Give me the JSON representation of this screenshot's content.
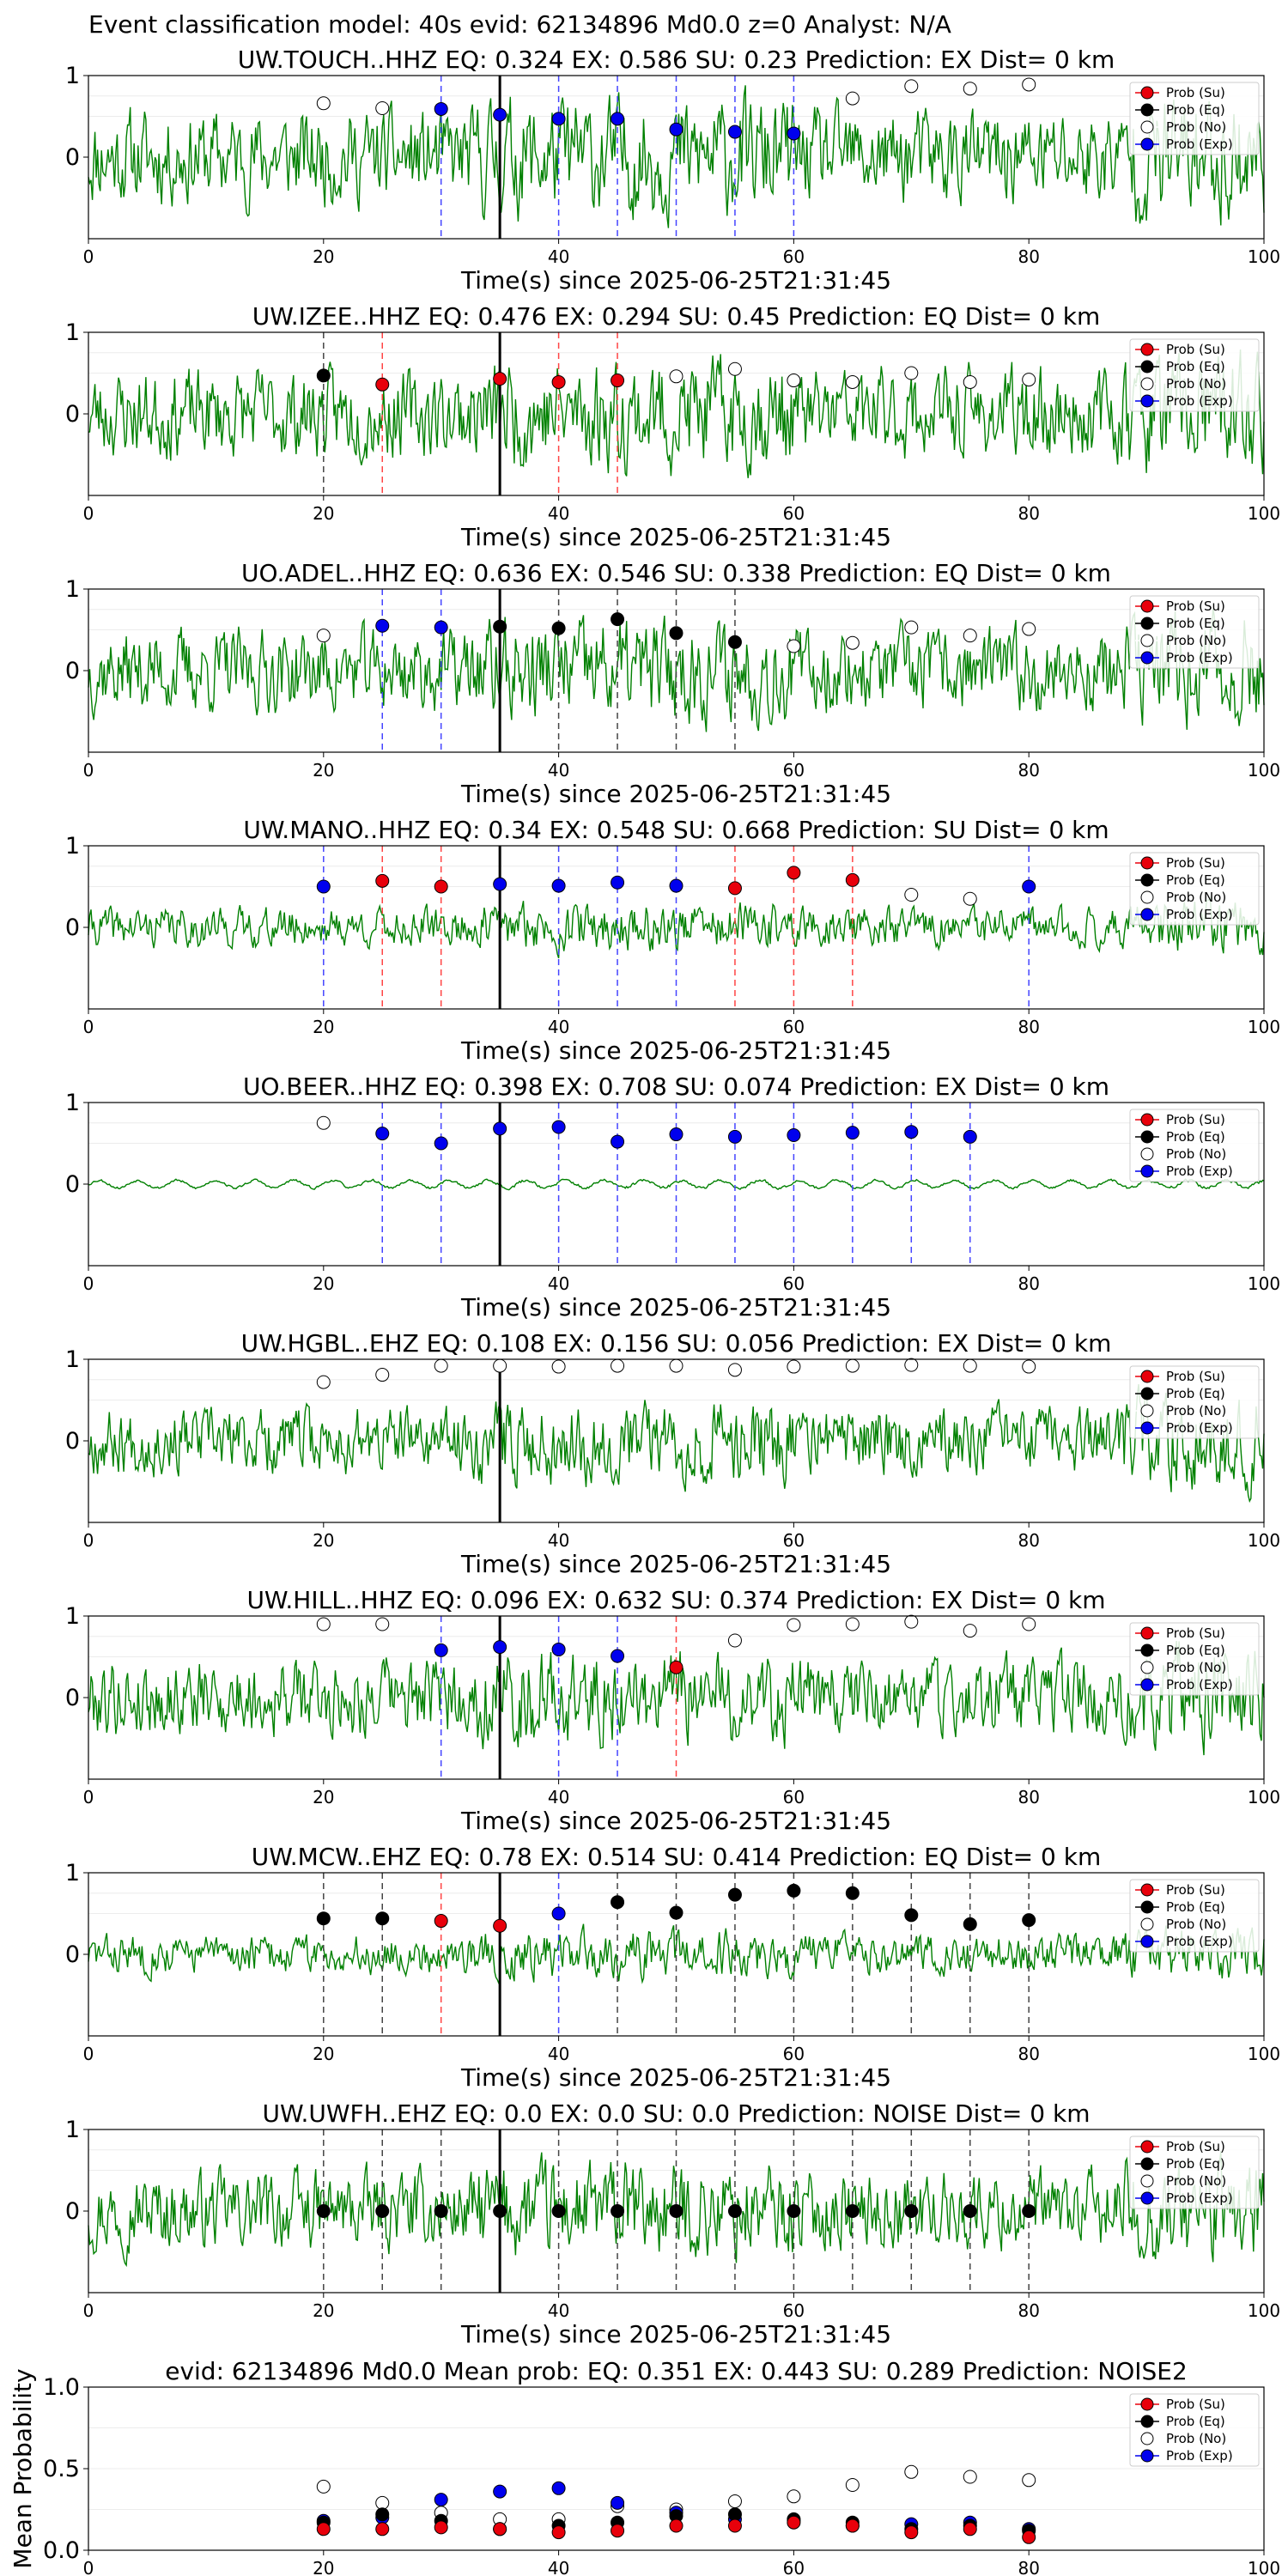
{
  "figure": {
    "suptitle": "Event classification model: 40s evid: 62134896 Md0.0 z=0 Analyst: N/A"
  },
  "legend": {
    "labels": [
      "Prob (Su)",
      "Prob (Eq)",
      "Prob (No)",
      "Prob (Exp)"
    ],
    "colors": [
      "#e8000b",
      "#000000",
      "#ffffff",
      "#0000ee"
    ]
  },
  "colors": {
    "waveform": "#008000",
    "su": "#e8000b",
    "eq": "#000000",
    "no": "#ffffff",
    "exp": "#0000ee",
    "su_line": "#ff4444",
    "eq_line": "#444444",
    "exp_line": "#4444ff"
  },
  "chart_data": [
    {
      "type": "line",
      "station": "UW.TOUCH..HHZ",
      "title": "UW.TOUCH..HHZ   EQ: 0.324  EX: 0.586  SU: 0.23   Prediction: EX    Dist= 0 km",
      "xlabel": "Time(s) since 2025-06-25T21:31:45",
      "xlim": [
        0,
        100
      ],
      "ylim": [
        -1,
        1
      ],
      "xticks": [
        "0",
        "20",
        "40",
        "60",
        "80",
        "100"
      ],
      "yticks": [
        "1",
        "0"
      ],
      "pick_time": 35,
      "amplitude": 0.85,
      "seed": 11,
      "points": [
        {
          "x": 20,
          "p": 0.66,
          "c": "no"
        },
        {
          "x": 25,
          "p": 0.6,
          "c": "no"
        },
        {
          "x": 30,
          "p": 0.59,
          "c": "exp"
        },
        {
          "x": 35,
          "p": 0.52,
          "c": "exp"
        },
        {
          "x": 40,
          "p": 0.47,
          "c": "exp"
        },
        {
          "x": 45,
          "p": 0.47,
          "c": "exp"
        },
        {
          "x": 50,
          "p": 0.34,
          "c": "exp"
        },
        {
          "x": 55,
          "p": 0.31,
          "c": "exp"
        },
        {
          "x": 60,
          "p": 0.29,
          "c": "exp"
        },
        {
          "x": 65,
          "p": 0.72,
          "c": "no"
        },
        {
          "x": 70,
          "p": 0.87,
          "c": "no"
        },
        {
          "x": 75,
          "p": 0.84,
          "c": "no"
        },
        {
          "x": 80,
          "p": 0.89,
          "c": "no"
        }
      ]
    },
    {
      "type": "line",
      "station": "UW.IZEE..HHZ",
      "title": "UW.IZEE..HHZ   EQ: 0.476  EX: 0.294  SU: 0.45   Prediction: EQ    Dist= 0 km",
      "xlabel": "Time(s) since 2025-06-25T21:31:45",
      "xlim": [
        0,
        100
      ],
      "ylim": [
        -1,
        1
      ],
      "xticks": [
        "0",
        "20",
        "40",
        "60",
        "80",
        "100"
      ],
      "yticks": [
        "1",
        "0"
      ],
      "pick_time": 35,
      "amplitude": 0.8,
      "seed": 23,
      "points": [
        {
          "x": 20,
          "p": 0.47,
          "c": "eq"
        },
        {
          "x": 25,
          "p": 0.36,
          "c": "su"
        },
        {
          "x": 35,
          "p": 0.43,
          "c": "su"
        },
        {
          "x": 40,
          "p": 0.39,
          "c": "su"
        },
        {
          "x": 45,
          "p": 0.41,
          "c": "su"
        },
        {
          "x": 50,
          "p": 0.46,
          "c": "no"
        },
        {
          "x": 55,
          "p": 0.55,
          "c": "no"
        },
        {
          "x": 60,
          "p": 0.41,
          "c": "no"
        },
        {
          "x": 65,
          "p": 0.39,
          "c": "no"
        },
        {
          "x": 70,
          "p": 0.5,
          "c": "no"
        },
        {
          "x": 75,
          "p": 0.39,
          "c": "no"
        },
        {
          "x": 80,
          "p": 0.42,
          "c": "no"
        }
      ]
    },
    {
      "type": "line",
      "station": "UO.ADEL..HHZ",
      "title": "UO.ADEL..HHZ   EQ: 0.636  EX: 0.546  SU: 0.338   Prediction: EQ    Dist= 0 km",
      "xlabel": "Time(s) since 2025-06-25T21:31:45",
      "xlim": [
        0,
        100
      ],
      "ylim": [
        -1,
        1
      ],
      "xticks": [
        "0",
        "20",
        "40",
        "60",
        "80",
        "100"
      ],
      "yticks": [
        "1",
        "0"
      ],
      "pick_time": 35,
      "amplitude": 0.75,
      "seed": 37,
      "points": [
        {
          "x": 20,
          "p": 0.43,
          "c": "no"
        },
        {
          "x": 25,
          "p": 0.55,
          "c": "exp"
        },
        {
          "x": 30,
          "p": 0.53,
          "c": "exp"
        },
        {
          "x": 35,
          "p": 0.54,
          "c": "eq"
        },
        {
          "x": 40,
          "p": 0.52,
          "c": "eq"
        },
        {
          "x": 45,
          "p": 0.63,
          "c": "eq"
        },
        {
          "x": 50,
          "p": 0.46,
          "c": "eq"
        },
        {
          "x": 55,
          "p": 0.35,
          "c": "eq"
        },
        {
          "x": 60,
          "p": 0.3,
          "c": "no"
        },
        {
          "x": 65,
          "p": 0.34,
          "c": "no"
        },
        {
          "x": 70,
          "p": 0.53,
          "c": "no"
        },
        {
          "x": 75,
          "p": 0.43,
          "c": "no"
        },
        {
          "x": 80,
          "p": 0.51,
          "c": "no"
        }
      ]
    },
    {
      "type": "line",
      "station": "UW.MANO..HHZ",
      "title": "UW.MANO..HHZ   EQ: 0.34  EX: 0.548  SU: 0.668   Prediction: SU    Dist= 0 km",
      "xlabel": "Time(s) since 2025-06-25T21:31:45",
      "xlim": [
        0,
        100
      ],
      "ylim": [
        -1,
        1
      ],
      "xticks": [
        "0",
        "20",
        "40",
        "60",
        "80",
        "100"
      ],
      "yticks": [
        "1",
        "0"
      ],
      "pick_time": 35,
      "amplitude": 0.35,
      "seed": 41,
      "points": [
        {
          "x": 20,
          "p": 0.5,
          "c": "exp"
        },
        {
          "x": 25,
          "p": 0.57,
          "c": "su"
        },
        {
          "x": 30,
          "p": 0.5,
          "c": "su"
        },
        {
          "x": 35,
          "p": 0.53,
          "c": "exp"
        },
        {
          "x": 40,
          "p": 0.51,
          "c": "exp"
        },
        {
          "x": 45,
          "p": 0.55,
          "c": "exp"
        },
        {
          "x": 50,
          "p": 0.51,
          "c": "exp"
        },
        {
          "x": 55,
          "p": 0.48,
          "c": "su"
        },
        {
          "x": 60,
          "p": 0.67,
          "c": "su"
        },
        {
          "x": 65,
          "p": 0.58,
          "c": "su"
        },
        {
          "x": 70,
          "p": 0.4,
          "c": "no"
        },
        {
          "x": 75,
          "p": 0.35,
          "c": "no"
        },
        {
          "x": 80,
          "p": 0.5,
          "c": "exp"
        }
      ]
    },
    {
      "type": "line",
      "station": "UO.BEER..HHZ",
      "title": "UO.BEER..HHZ   EQ: 0.398  EX: 0.708  SU: 0.074   Prediction: EX    Dist= 0 km",
      "xlabel": "Time(s) since 2025-06-25T21:31:45",
      "xlim": [
        0,
        100
      ],
      "ylim": [
        -1,
        1
      ],
      "xticks": [
        "0",
        "20",
        "40",
        "60",
        "80",
        "100"
      ],
      "yticks": [
        "1",
        "0"
      ],
      "pick_time": 35,
      "amplitude": 0.08,
      "seed": 53,
      "points": [
        {
          "x": 20,
          "p": 0.75,
          "c": "no"
        },
        {
          "x": 25,
          "p": 0.62,
          "c": "exp"
        },
        {
          "x": 30,
          "p": 0.5,
          "c": "exp"
        },
        {
          "x": 35,
          "p": 0.68,
          "c": "exp"
        },
        {
          "x": 40,
          "p": 0.7,
          "c": "exp"
        },
        {
          "x": 45,
          "p": 0.52,
          "c": "exp"
        },
        {
          "x": 50,
          "p": 0.61,
          "c": "exp"
        },
        {
          "x": 55,
          "p": 0.58,
          "c": "exp"
        },
        {
          "x": 60,
          "p": 0.6,
          "c": "exp"
        },
        {
          "x": 65,
          "p": 0.63,
          "c": "exp"
        },
        {
          "x": 70,
          "p": 0.64,
          "c": "exp"
        },
        {
          "x": 75,
          "p": 0.58,
          "c": "exp"
        }
      ]
    },
    {
      "type": "line",
      "station": "UW.HGBL..EHZ",
      "title": "UW.HGBL..EHZ   EQ: 0.108  EX: 0.156  SU: 0.056   Prediction: EX    Dist= 0 km",
      "xlabel": "Time(s) since 2025-06-25T21:31:45",
      "xlim": [
        0,
        100
      ],
      "ylim": [
        -1,
        1
      ],
      "xticks": [
        "0",
        "20",
        "40",
        "60",
        "80",
        "100"
      ],
      "yticks": [
        "1",
        "0"
      ],
      "pick_time": 35,
      "amplitude": 0.6,
      "seed": 67,
      "points": [
        {
          "x": 20,
          "p": 0.72,
          "c": "no"
        },
        {
          "x": 25,
          "p": 0.81,
          "c": "no"
        },
        {
          "x": 30,
          "p": 0.92,
          "c": "no"
        },
        {
          "x": 35,
          "p": 0.92,
          "c": "no"
        },
        {
          "x": 40,
          "p": 0.91,
          "c": "no"
        },
        {
          "x": 45,
          "p": 0.92,
          "c": "no"
        },
        {
          "x": 50,
          "p": 0.92,
          "c": "no"
        },
        {
          "x": 55,
          "p": 0.87,
          "c": "no"
        },
        {
          "x": 60,
          "p": 0.91,
          "c": "no"
        },
        {
          "x": 65,
          "p": 0.92,
          "c": "no"
        },
        {
          "x": 70,
          "p": 0.93,
          "c": "no"
        },
        {
          "x": 75,
          "p": 0.92,
          "c": "no"
        },
        {
          "x": 80,
          "p": 0.91,
          "c": "no"
        }
      ]
    },
    {
      "type": "line",
      "station": "UW.HILL..HHZ",
      "title": "UW.HILL..HHZ   EQ: 0.096  EX: 0.632  SU: 0.374   Prediction: EX    Dist= 0 km",
      "xlabel": "Time(s) since 2025-06-25T21:31:45",
      "xlim": [
        0,
        100
      ],
      "ylim": [
        -1,
        1
      ],
      "xticks": [
        "0",
        "20",
        "40",
        "60",
        "80",
        "100"
      ],
      "yticks": [
        "1",
        "0"
      ],
      "pick_time": 35,
      "amplitude": 0.7,
      "seed": 79,
      "points": [
        {
          "x": 20,
          "p": 0.9,
          "c": "no"
        },
        {
          "x": 25,
          "p": 0.9,
          "c": "no"
        },
        {
          "x": 30,
          "p": 0.58,
          "c": "exp"
        },
        {
          "x": 35,
          "p": 0.62,
          "c": "exp"
        },
        {
          "x": 40,
          "p": 0.59,
          "c": "exp"
        },
        {
          "x": 45,
          "p": 0.51,
          "c": "exp"
        },
        {
          "x": 50,
          "p": 0.37,
          "c": "su"
        },
        {
          "x": 55,
          "p": 0.7,
          "c": "no"
        },
        {
          "x": 60,
          "p": 0.89,
          "c": "no"
        },
        {
          "x": 65,
          "p": 0.9,
          "c": "no"
        },
        {
          "x": 70,
          "p": 0.93,
          "c": "no"
        },
        {
          "x": 75,
          "p": 0.82,
          "c": "no"
        },
        {
          "x": 80,
          "p": 0.9,
          "c": "no"
        }
      ]
    },
    {
      "type": "line",
      "station": "UW.MCW..EHZ",
      "title": "UW.MCW..EHZ   EQ: 0.78  EX: 0.514  SU: 0.414   Prediction: EQ    Dist= 0 km",
      "xlabel": "Time(s) since 2025-06-25T21:31:45",
      "xlim": [
        0,
        100
      ],
      "ylim": [
        -1,
        1
      ],
      "xticks": [
        "0",
        "20",
        "40",
        "60",
        "80",
        "100"
      ],
      "yticks": [
        "1",
        "0"
      ],
      "pick_time": 35,
      "amplitude": 0.35,
      "seed": 83,
      "points": [
        {
          "x": 20,
          "p": 0.44,
          "c": "eq"
        },
        {
          "x": 25,
          "p": 0.44,
          "c": "eq"
        },
        {
          "x": 30,
          "p": 0.41,
          "c": "su"
        },
        {
          "x": 35,
          "p": 0.35,
          "c": "su"
        },
        {
          "x": 40,
          "p": 0.5,
          "c": "exp"
        },
        {
          "x": 45,
          "p": 0.64,
          "c": "eq"
        },
        {
          "x": 50,
          "p": 0.51,
          "c": "eq"
        },
        {
          "x": 55,
          "p": 0.73,
          "c": "eq"
        },
        {
          "x": 60,
          "p": 0.78,
          "c": "eq"
        },
        {
          "x": 65,
          "p": 0.75,
          "c": "eq"
        },
        {
          "x": 70,
          "p": 0.48,
          "c": "eq"
        },
        {
          "x": 75,
          "p": 0.37,
          "c": "eq"
        },
        {
          "x": 80,
          "p": 0.42,
          "c": "eq"
        }
      ]
    },
    {
      "type": "line",
      "station": "UW.UWFH..EHZ",
      "title": "UW.UWFH..EHZ   EQ: 0.0  EX: 0.0  SU: 0.0   Prediction: NOISE    Dist= 0 km",
      "xlabel": "Time(s) since 2025-06-25T21:31:45",
      "xlim": [
        0,
        100
      ],
      "ylim": [
        -1,
        1
      ],
      "xticks": [
        "0",
        "20",
        "40",
        "60",
        "80",
        "100"
      ],
      "yticks": [
        "1",
        "0"
      ],
      "pick_time": 35,
      "amplitude": 0.7,
      "seed": 97,
      "points": [
        {
          "x": 20,
          "p": 0.0,
          "c": "eq"
        },
        {
          "x": 25,
          "p": 0.0,
          "c": "eq"
        },
        {
          "x": 30,
          "p": 0.0,
          "c": "eq"
        },
        {
          "x": 35,
          "p": 0.0,
          "c": "eq"
        },
        {
          "x": 40,
          "p": 0.0,
          "c": "eq"
        },
        {
          "x": 45,
          "p": 0.0,
          "c": "eq"
        },
        {
          "x": 50,
          "p": 0.0,
          "c": "eq"
        },
        {
          "x": 55,
          "p": 0.0,
          "c": "eq"
        },
        {
          "x": 60,
          "p": 0.0,
          "c": "eq"
        },
        {
          "x": 65,
          "p": 0.0,
          "c": "eq"
        },
        {
          "x": 70,
          "p": 0.0,
          "c": "eq"
        },
        {
          "x": 75,
          "p": 0.0,
          "c": "eq"
        },
        {
          "x": 80,
          "p": 0.0,
          "c": "eq"
        }
      ]
    },
    {
      "type": "scatter",
      "title": "evid: 62134896  Md0.0   Mean prob:    EQ: 0.351  EX: 0.443  SU: 0.289   Prediction: NOISE2",
      "ylabel": "Mean Probability",
      "xlim": [
        0,
        100
      ],
      "ylim": [
        0,
        1
      ],
      "xticks": [
        "0",
        "20",
        "40",
        "60",
        "80",
        "100"
      ],
      "yticks": [
        "1.0",
        "0.5",
        "0.0"
      ],
      "x": [
        20,
        25,
        30,
        35,
        40,
        45,
        50,
        55,
        60,
        65,
        70,
        75,
        80
      ],
      "series": [
        {
          "name": "Prob (No)",
          "key": "no",
          "values": [
            0.39,
            0.29,
            0.23,
            0.19,
            0.19,
            0.27,
            0.25,
            0.3,
            0.33,
            0.4,
            0.48,
            0.45,
            0.43
          ]
        },
        {
          "name": "Prob (Exp)",
          "key": "exp",
          "values": [
            0.18,
            0.2,
            0.31,
            0.36,
            0.38,
            0.29,
            0.23,
            0.19,
            0.18,
            0.15,
            0.16,
            0.17,
            0.13
          ]
        },
        {
          "name": "Prob (Eq)",
          "key": "eq",
          "values": [
            0.17,
            0.22,
            0.18,
            0.13,
            0.15,
            0.17,
            0.21,
            0.22,
            0.19,
            0.17,
            0.13,
            0.15,
            0.12
          ]
        },
        {
          "name": "Prob (Su)",
          "key": "su",
          "values": [
            0.13,
            0.13,
            0.14,
            0.13,
            0.11,
            0.12,
            0.15,
            0.15,
            0.17,
            0.15,
            0.11,
            0.13,
            0.08
          ]
        }
      ]
    }
  ]
}
